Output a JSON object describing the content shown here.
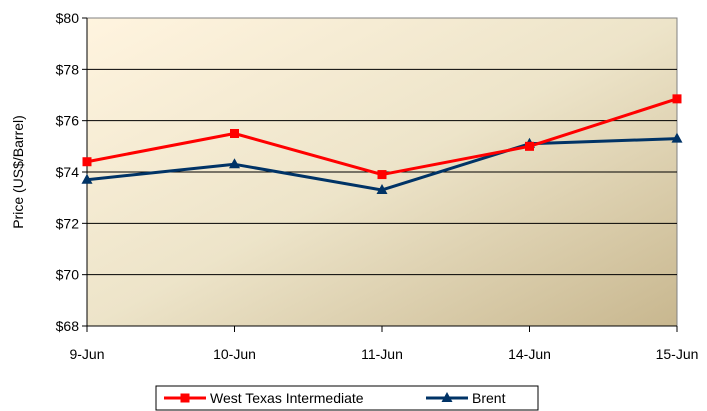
{
  "chart_data": {
    "type": "line",
    "title": "",
    "xlabel": "",
    "ylabel": "Price (US$/Barrel)",
    "categories": [
      "9-Jun",
      "10-Jun",
      "11-Jun",
      "14-Jun",
      "15-Jun"
    ],
    "ylim": [
      68,
      80
    ],
    "yticks": [
      68,
      70,
      72,
      74,
      76,
      78,
      80
    ],
    "ytick_labels": [
      "$68",
      "$70",
      "$72",
      "$74",
      "$76",
      "$78",
      "$80"
    ],
    "grid": "horizontal",
    "legend_position": "bottom",
    "series": [
      {
        "name": "West Texas Intermediate",
        "values": [
          74.4,
          75.5,
          73.9,
          75.0,
          76.85
        ],
        "color": "#ff0000",
        "marker": "square"
      },
      {
        "name": "Brent",
        "values": [
          73.7,
          74.3,
          73.3,
          75.1,
          75.3
        ],
        "color": "#003366",
        "marker": "triangle"
      }
    ]
  }
}
